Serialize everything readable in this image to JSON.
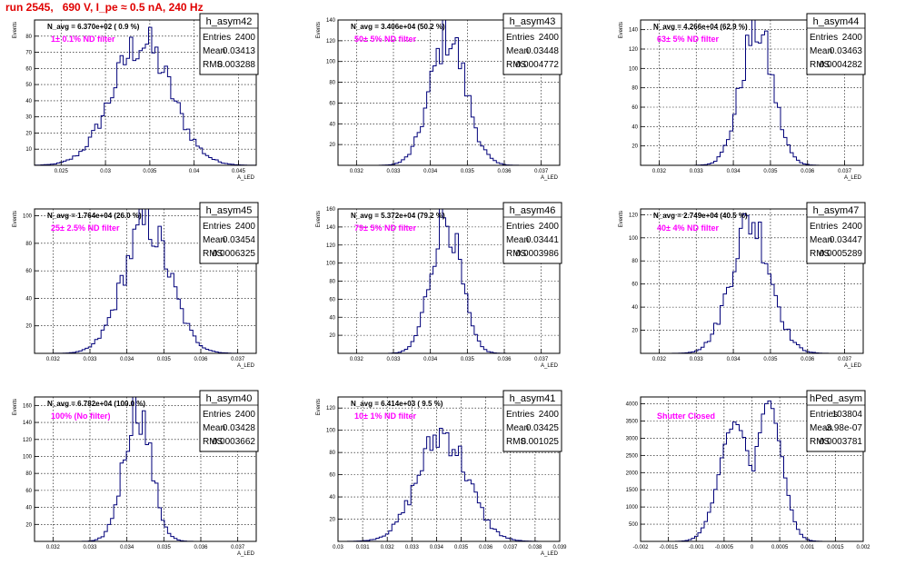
{
  "header": {
    "title": "run 2545,   690 V, I_pe ≈ 0.5 nA, 240 Hz"
  },
  "chart_data": [
    {
      "type": "histogram",
      "name": "h_asym42",
      "stats": {
        "entries": "2400",
        "mean": "0.03413",
        "rms": "0.003288"
      },
      "n_avg": "N_avg = 6.370e+02 ( 0.9 %)",
      "filter_label": "1± 0.1% ND filter",
      "xlim": [
        0.022,
        0.047
      ],
      "ylim": [
        0,
        90
      ],
      "xticks": [
        0.025,
        0.03,
        0.035,
        0.04,
        0.045
      ],
      "xtick_labels": [
        "0.025",
        "0.03",
        "0.035",
        "0.04",
        "0.045"
      ],
      "yticks": [
        10,
        20,
        30,
        40,
        50,
        60,
        70,
        80
      ],
      "xlabel": "A_LED",
      "ylabel": "Events",
      "center": 0.0341,
      "sigma": 0.0033,
      "peak": 78
    },
    {
      "type": "histogram",
      "name": "h_asym43",
      "stats": {
        "entries": "2400",
        "mean": "0.03448",
        "rms": "0.0004772"
      },
      "n_avg": "N_avg = 3.406e+04 (50.2 %)",
      "filter_label": "50± 5% ND filter",
      "xlim": [
        0.0315,
        0.0375
      ],
      "ylim": [
        0,
        140
      ],
      "xticks": [
        0.032,
        0.033,
        0.034,
        0.035,
        0.036,
        0.037
      ],
      "xtick_labels": [
        "0.032",
        "0.033",
        "0.034",
        "0.035",
        "0.036",
        "0.037"
      ],
      "yticks": [
        20,
        40,
        60,
        80,
        100,
        120,
        140
      ],
      "xlabel": "A_LED",
      "ylabel": "Events",
      "center": 0.03448,
      "sigma": 0.00048,
      "peak": 128
    },
    {
      "type": "histogram",
      "name": "h_asym44",
      "stats": {
        "entries": "2400",
        "mean": "0.03463",
        "rms": "0.0004282"
      },
      "n_avg": "N_avg = 4.266e+04 (62.9 %)",
      "filter_label": "63± 5% ND filter",
      "xlim": [
        0.0315,
        0.0375
      ],
      "ylim": [
        0,
        150
      ],
      "xticks": [
        0.032,
        0.033,
        0.034,
        0.035,
        0.036,
        0.037
      ],
      "xtick_labels": [
        "0.032",
        "0.033",
        "0.034",
        "0.035",
        "0.036",
        "0.037"
      ],
      "yticks": [
        20,
        40,
        60,
        80,
        100,
        120,
        140
      ],
      "xlabel": "A_LED",
      "ylabel": "Events",
      "center": 0.03463,
      "sigma": 0.00043,
      "peak": 145
    },
    {
      "type": "histogram",
      "name": "h_asym45",
      "stats": {
        "entries": "2400",
        "mean": "0.03454",
        "rms": "0.0006325"
      },
      "n_avg": "N_avg = 1.764e+04 (26.0 %)",
      "filter_label": "25± 2.5% ND filter",
      "xlim": [
        0.0315,
        0.0375
      ],
      "ylim": [
        0,
        105
      ],
      "xticks": [
        0.032,
        0.033,
        0.034,
        0.035,
        0.036,
        0.037
      ],
      "xtick_labels": [
        "0.032",
        "0.033",
        "0.034",
        "0.035",
        "0.036",
        "0.037"
      ],
      "yticks": [
        20,
        40,
        60,
        80,
        100
      ],
      "xlabel": "A_LED",
      "ylabel": "Events",
      "center": 0.03454,
      "sigma": 0.00063,
      "peak": 96
    },
    {
      "type": "histogram",
      "name": "h_asym46",
      "stats": {
        "entries": "2400",
        "mean": "0.03441",
        "rms": "0.0003986"
      },
      "n_avg": "N_avg = 5.372e+04 (79.2 %)",
      "filter_label": "79± 5% ND filter",
      "xlim": [
        0.0315,
        0.0375
      ],
      "ylim": [
        0,
        160
      ],
      "xticks": [
        0.032,
        0.033,
        0.034,
        0.035,
        0.036,
        0.037
      ],
      "xtick_labels": [
        "0.032",
        "0.033",
        "0.034",
        "0.035",
        "0.036",
        "0.037"
      ],
      "yticks": [
        20,
        40,
        60,
        80,
        100,
        120,
        140,
        160
      ],
      "xlabel": "A_LED",
      "ylabel": "Events",
      "center": 0.03441,
      "sigma": 0.0004,
      "peak": 155
    },
    {
      "type": "histogram",
      "name": "h_asym47",
      "stats": {
        "entries": "2400",
        "mean": "0.03447",
        "rms": "0.0005289"
      },
      "n_avg": "N_avg = 2.749e+04 (40.5 %)",
      "filter_label": "40± 4% ND filter",
      "xlim": [
        0.0315,
        0.0375
      ],
      "ylim": [
        0,
        125
      ],
      "xticks": [
        0.032,
        0.033,
        0.034,
        0.035,
        0.036,
        0.037
      ],
      "xtick_labels": [
        "0.032",
        "0.033",
        "0.034",
        "0.035",
        "0.036",
        "0.037"
      ],
      "yticks": [
        20,
        40,
        60,
        80,
        100,
        120
      ],
      "xlabel": "A_LED",
      "ylabel": "Events",
      "center": 0.03447,
      "sigma": 0.00053,
      "peak": 118
    },
    {
      "type": "histogram",
      "name": "h_asym40",
      "stats": {
        "entries": "2400",
        "mean": "0.03428",
        "rms": "0.0003662"
      },
      "n_avg": "N_avg = 6.782e+04 (100.0 %)",
      "filter_label": "100% (No filter)",
      "xlim": [
        0.0315,
        0.0375
      ],
      "ylim": [
        0,
        170
      ],
      "xticks": [
        0.032,
        0.033,
        0.034,
        0.035,
        0.036,
        0.037
      ],
      "xtick_labels": [
        "0.032",
        "0.033",
        "0.034",
        "0.035",
        "0.036",
        "0.037"
      ],
      "yticks": [
        20,
        40,
        60,
        80,
        100,
        120,
        140,
        160
      ],
      "xlabel": "A_LED",
      "ylabel": "Events",
      "center": 0.03428,
      "sigma": 0.00037,
      "peak": 162
    },
    {
      "type": "histogram",
      "name": "h_asym41",
      "stats": {
        "entries": "2400",
        "mean": "0.03425",
        "rms": "0.001025"
      },
      "n_avg": "N_avg = 6.414e+03 ( 9.5 %)",
      "filter_label": "10± 1% ND filter",
      "xlim": [
        0.03,
        0.039
      ],
      "ylim": [
        0,
        130
      ],
      "xticks": [
        0.03,
        0.031,
        0.032,
        0.033,
        0.034,
        0.035,
        0.036,
        0.037,
        0.038,
        0.039
      ],
      "xtick_labels": [
        "0.03",
        "0.031",
        "0.032",
        "0.033",
        "0.034",
        "0.035",
        "0.036",
        "0.037",
        "0.038",
        "0.039"
      ],
      "yticks": [
        20,
        40,
        60,
        80,
        100,
        120
      ],
      "xlabel": "A_LED",
      "ylabel": "Events",
      "center": 0.03425,
      "sigma": 0.001,
      "peak": 100
    },
    {
      "type": "histogram",
      "name": "hPed_asym",
      "stats": {
        "entries": "103804",
        "mean": "-3.98e-07",
        "rms": "0.0003781"
      },
      "n_avg": "",
      "filter_label": "Shutter Closed",
      "xlim": [
        -0.002,
        0.002
      ],
      "ylim": [
        0,
        4200
      ],
      "xticks": [
        -0.002,
        -0.0015,
        -0.001,
        -0.0005,
        0,
        0.0005,
        0.001,
        0.0015,
        0.002
      ],
      "xtick_labels": [
        "-0.002",
        "-0.0015",
        "-0.001",
        "-0.0005",
        "0",
        "0.0005",
        "0.001",
        "0.0015",
        "0.002"
      ],
      "yticks": [
        500,
        1000,
        1500,
        2000,
        2500,
        3000,
        3500,
        4000
      ],
      "xlabel": "",
      "ylabel": "",
      "center": 0.0,
      "sigma": 0.00038,
      "peak": 4000,
      "bimodal": true
    }
  ]
}
